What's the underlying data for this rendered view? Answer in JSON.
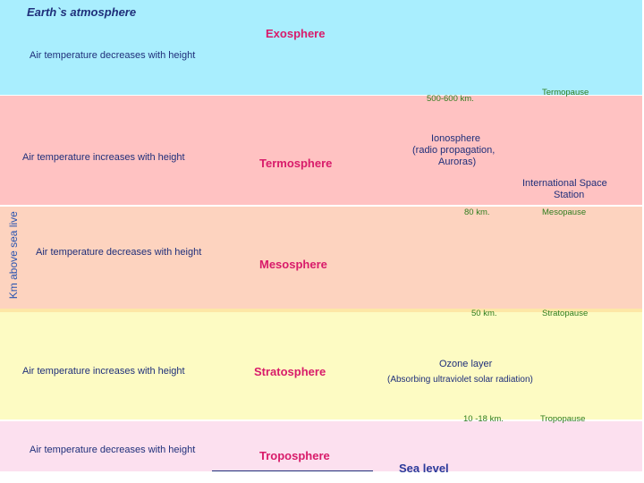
{
  "title": "Earth`s atmosphere",
  "side_label": "Km above sea live",
  "colors": {
    "exosphere": "#a9eefe",
    "termosphere": "#ffc2c2",
    "mesosphere": "#fdd3bf",
    "stratosphere": "#fdfbc3",
    "troposphere": "#fce0ef",
    "layer_name": "#d81b6a",
    "note_text": "#1f2f7a",
    "green_text": "#2e7d1e"
  },
  "layers": {
    "exosphere": {
      "name": "Exosphere",
      "note": "Air temperature decreases with height"
    },
    "termosphere": {
      "name": "Termosphere",
      "note": "Air temperature increases with height"
    },
    "mesosphere": {
      "name": "Mesosphere",
      "note": "Air temperature decreases with height"
    },
    "stratosphere": {
      "name": "Stratosphere",
      "note": "Air temperature increases with height"
    },
    "troposphere": {
      "name": "Troposphere",
      "note": "Air temperature decreases with height"
    }
  },
  "boundaries": {
    "termopause": {
      "name": "Termopause",
      "height": "500-600 km."
    },
    "mesopause": {
      "name": "Mesopause",
      "height": "80 km."
    },
    "stratopause": {
      "name": "Stratopause",
      "height": "50 km."
    },
    "tropopause": {
      "name": "Tropopause",
      "height": "10 -18 km."
    }
  },
  "features": {
    "ionosphere": {
      "line1": "Ionosphere",
      "line2": "(radio propagation,",
      "line3": "Auroras)"
    },
    "iss": {
      "line1": "International Space",
      "line2": "Station"
    },
    "ozone": {
      "line1": "Ozone layer",
      "line2": "(Absorbing ultraviolet solar radiation)"
    }
  },
  "sea_level": "Sea level"
}
